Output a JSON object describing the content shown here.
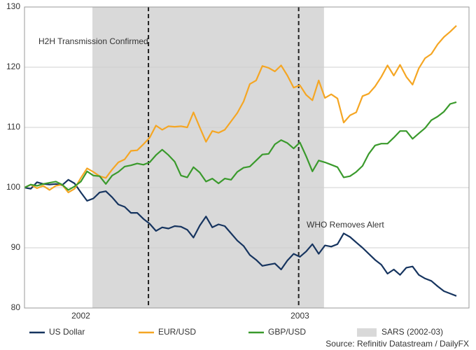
{
  "chart_data": {
    "type": "line",
    "categories": [
      null,
      null,
      null,
      null,
      null,
      null,
      null,
      null,
      null,
      "2002",
      null,
      null,
      null,
      null,
      null,
      null,
      null,
      null,
      null,
      null,
      null,
      null,
      null,
      null,
      null,
      null,
      null,
      null,
      null,
      null,
      null,
      null,
      null,
      null,
      null,
      null,
      null,
      null,
      null,
      null,
      null,
      null,
      null,
      null,
      "2003",
      null,
      null,
      null,
      null,
      null,
      null,
      null,
      null,
      null,
      null,
      null,
      null,
      null,
      null,
      null,
      null,
      null,
      null,
      null,
      null,
      null,
      null,
      null,
      null,
      null
    ],
    "series": [
      {
        "name": "US Dollar",
        "color": "#16345f",
        "values": [
          100,
          99.8,
          100.9,
          100.6,
          100.5,
          100.6,
          100.4,
          101.3,
          100.7,
          99.2,
          97.8,
          98.2,
          99.2,
          99.4,
          98.4,
          97.2,
          96.8,
          95.8,
          95.8,
          94.8,
          94,
          92.8,
          93.4,
          93.2,
          93.6,
          93.5,
          93,
          91.7,
          93.7,
          95.2,
          93.4,
          93.9,
          93.6,
          92.4,
          91.2,
          90.3,
          88.8,
          88,
          87,
          87.2,
          87.4,
          86.4,
          87.9,
          89,
          88.5,
          89.4,
          90.6,
          89,
          90.4,
          90.2,
          90.6,
          92.4,
          91.8,
          90.9,
          90,
          89,
          88,
          87.2,
          85.7,
          86.4,
          85.5,
          86.7,
          86.9,
          85.5,
          84.9,
          84.5,
          83.6,
          82.8,
          82.4,
          82
        ]
      },
      {
        "name": "EUR/USD",
        "color": "#f5a623",
        "values": [
          100,
          100.5,
          99.9,
          100.3,
          99.6,
          100.3,
          100.5,
          99.2,
          99.8,
          101.6,
          103.2,
          102.6,
          101.9,
          101.6,
          103,
          104.2,
          104.7,
          106.1,
          106.2,
          107.2,
          108.3,
          110.3,
          109.6,
          110.2,
          110.1,
          110.2,
          110,
          112.5,
          110,
          107.6,
          109.4,
          109.1,
          109.6,
          111,
          112.4,
          114.3,
          117.2,
          117.8,
          120.2,
          119.9,
          119.3,
          120.3,
          118.6,
          116.6,
          117,
          115.4,
          114.5,
          117.8,
          114.9,
          115.5,
          114.8,
          110.8,
          112,
          112.5,
          115.2,
          115.6,
          116.8,
          118.4,
          120.3,
          118.6,
          120.4,
          118.4,
          117.1,
          119.8,
          121.5,
          122.2,
          123.8,
          125,
          125.9,
          126.9
        ]
      },
      {
        "name": "GBP/USD",
        "color": "#3a9a2c",
        "values": [
          100,
          100.5,
          100.3,
          100.6,
          100.8,
          101,
          100.5,
          99.6,
          100.2,
          101,
          102.7,
          102,
          101.9,
          100.6,
          102,
          102.6,
          103.5,
          103.7,
          104,
          103.8,
          104.2,
          105.4,
          106.3,
          105.4,
          104.3,
          102,
          101.7,
          103.4,
          102.5,
          101,
          101.5,
          100.7,
          101.5,
          101.3,
          102.6,
          103.3,
          103.5,
          104.5,
          105.5,
          105.6,
          107.2,
          107.9,
          107.4,
          106.5,
          107.5,
          105.2,
          102.7,
          104.5,
          104.2,
          103.8,
          103.4,
          101.7,
          101.9,
          102.6,
          103.6,
          105.6,
          107,
          107.3,
          107.3,
          108.3,
          109.4,
          109.4,
          108.1,
          109,
          109.9,
          111.2,
          111.8,
          112.6,
          113.9,
          114.2
        ]
      }
    ],
    "shade": {
      "label": "SARS (2002-03)",
      "color": "#d9d9d9",
      "from": 11,
      "to": 48
    },
    "events": [
      {
        "label": "H2H Transmission Confirmed",
        "at": 20
      },
      {
        "label": "WHO Removes Alert",
        "at": 44
      }
    ],
    "ylim": [
      80,
      130
    ],
    "yticks": [
      80,
      90,
      100,
      110,
      120,
      130
    ],
    "grid": true,
    "source": "Source: Refinitiv Datastream / DailyFX"
  }
}
